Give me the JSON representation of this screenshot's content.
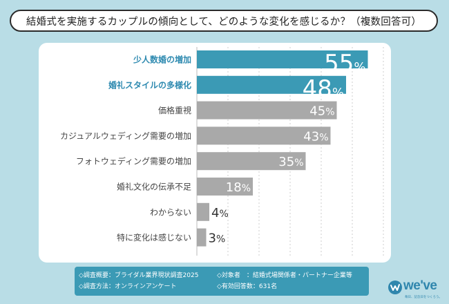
{
  "title": "結婚式を実施するカップルの傾向として、どのような変化を感じるか？（複数回答可）",
  "chart_data": {
    "type": "bar",
    "orientation": "horizontal",
    "categories": [
      "少人数婚の増加",
      "婚礼スタイルの多様化",
      "価格重視",
      "カジュアルウェディング需要の増加",
      "フォトウェディング需要の増加",
      "婚礼文化の伝承不足",
      "わからない",
      "特に変化は感じない"
    ],
    "values": [
      55,
      48,
      45,
      43,
      35,
      18,
      4,
      3
    ],
    "unit": "%",
    "highlight": [
      true,
      true,
      false,
      false,
      false,
      false,
      false,
      false
    ],
    "xlim": [
      0,
      60
    ],
    "grid": true,
    "colors": {
      "highlight_bar": "#3b9ab5",
      "highlight_label": "#2e8ab0",
      "normal_bar": "#a9a9a9",
      "normal_label": "#444444",
      "grid": "#cccccc"
    }
  },
  "footer": {
    "survey_overview": "◇調査概要：ブライダル業界現状調査2025",
    "target": "◇対象者　：結婚式場関係者・パートナー企業等",
    "method": "◇調査方法：オンラインアンケート",
    "responses": "◇有効回答数：631名"
  },
  "logo": {
    "text": "we've",
    "tagline": "毎日、記念日をつくろう。",
    "icon": "logo-mark-icon"
  }
}
